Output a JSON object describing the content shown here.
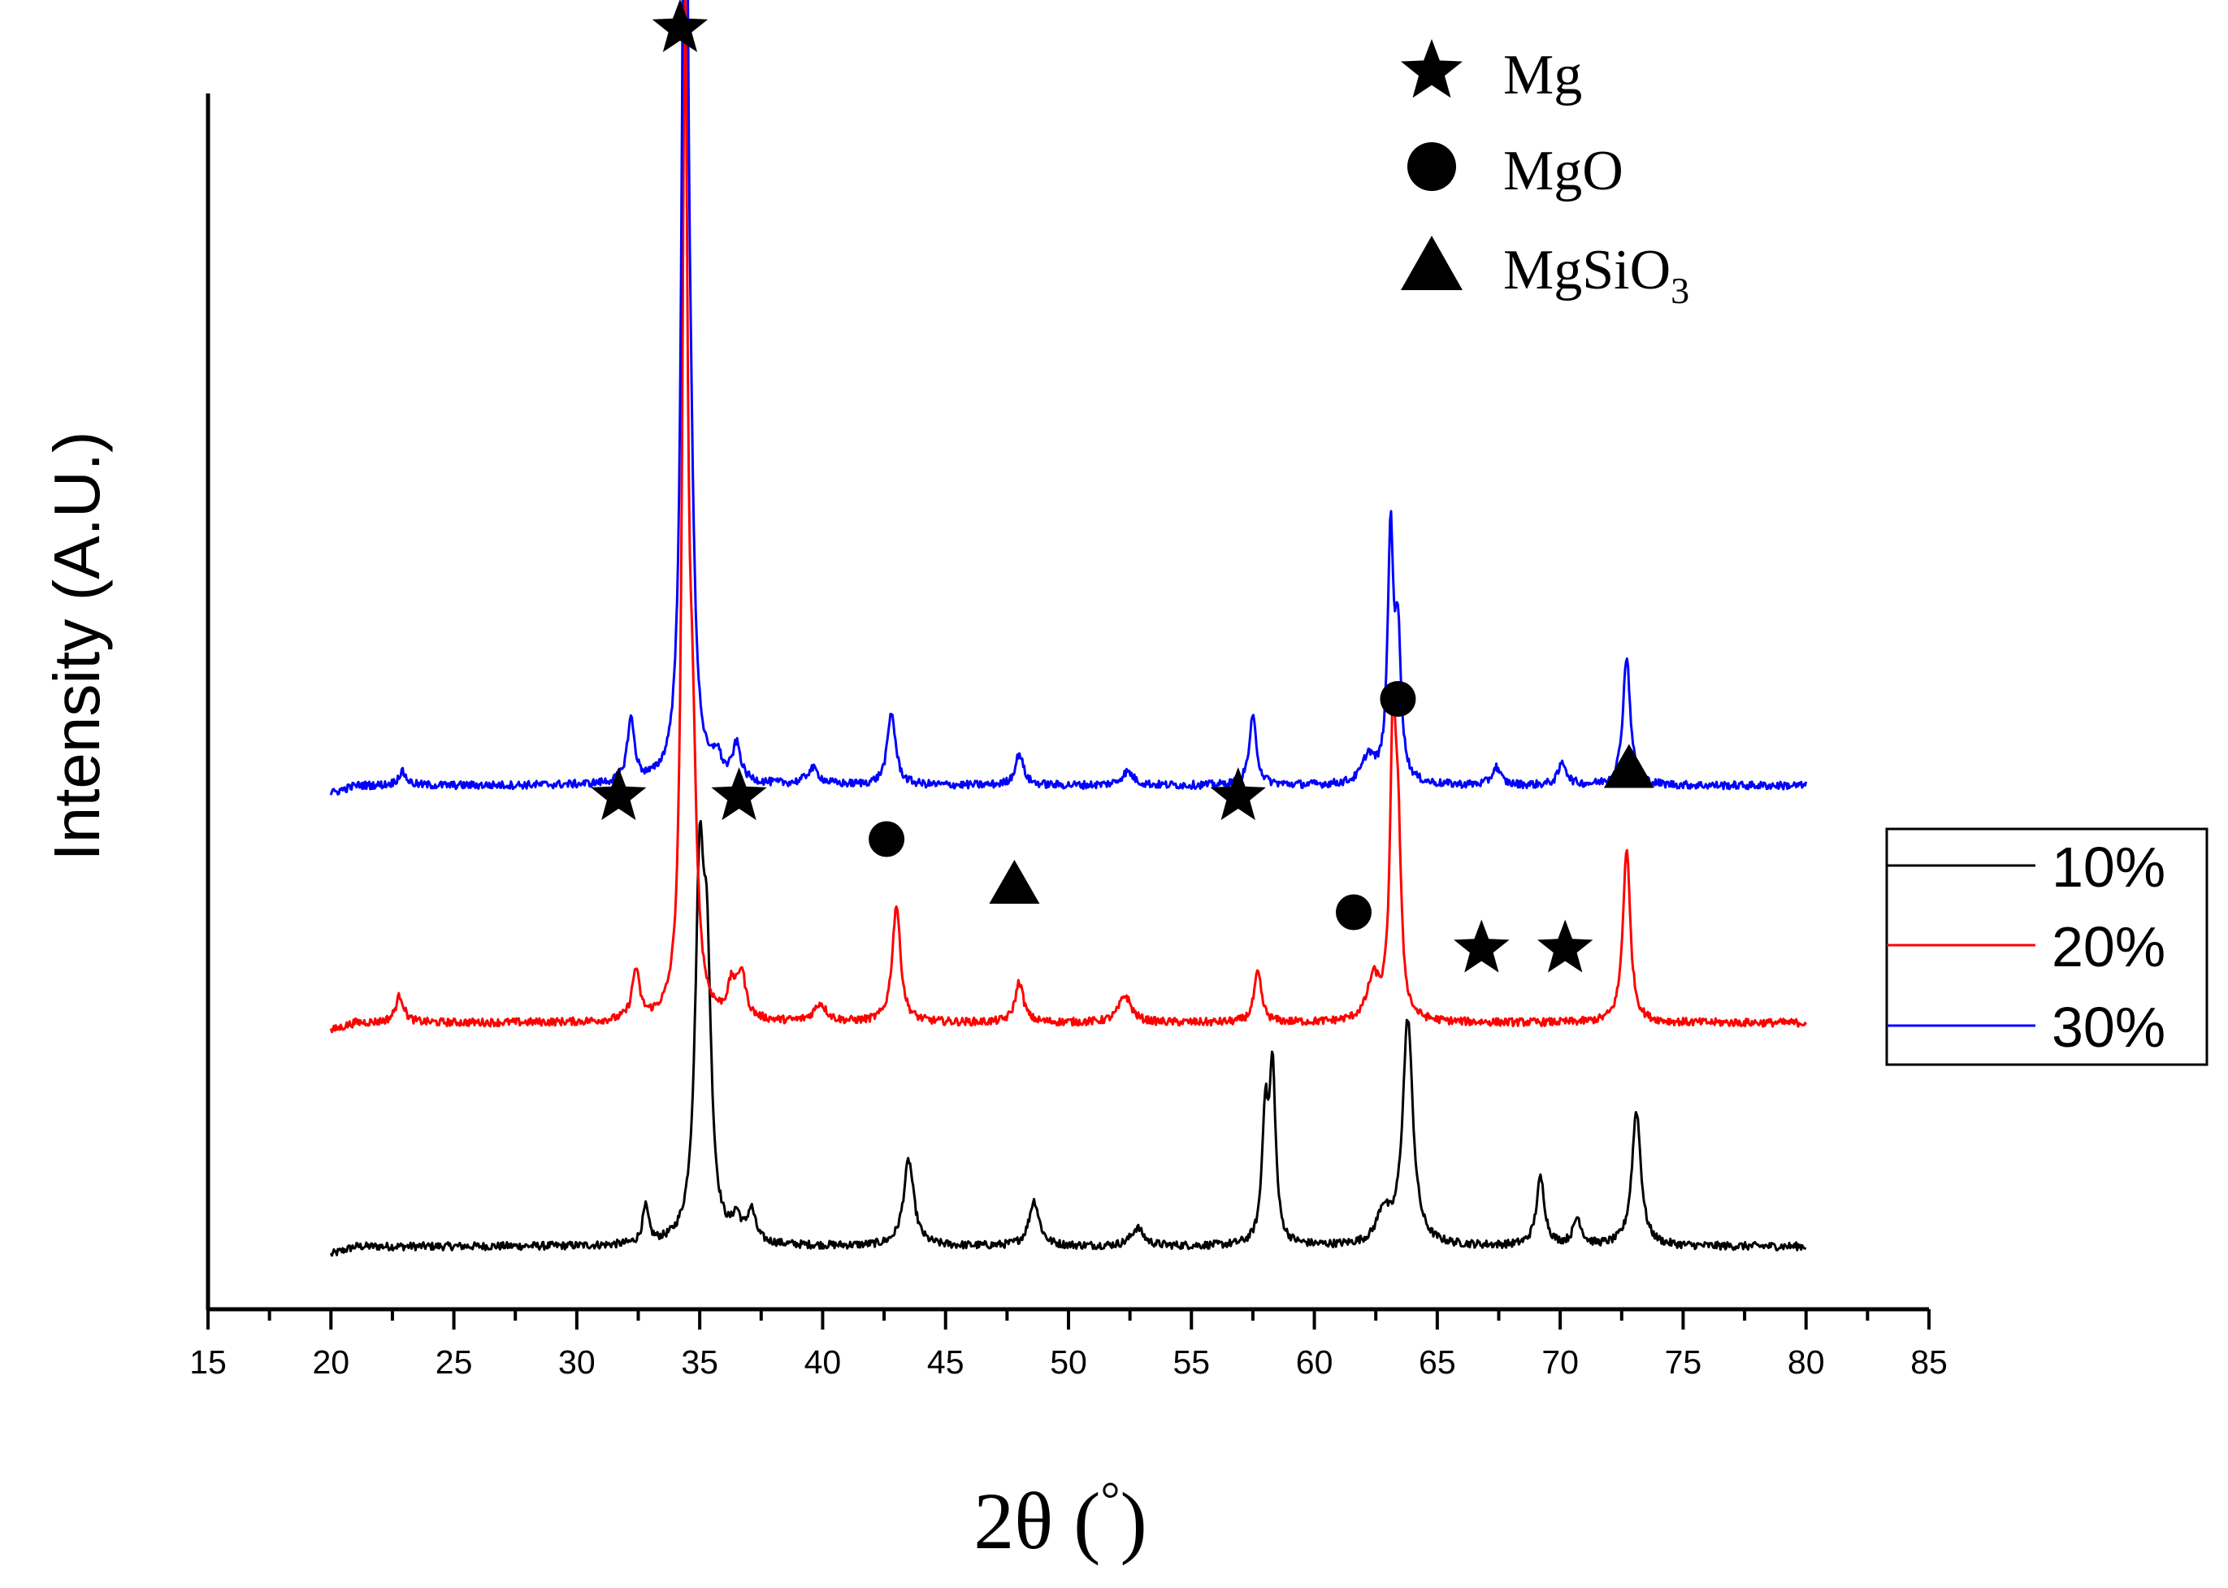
{
  "chart_data": {
    "type": "line",
    "title": "",
    "xlabel": "2θ (°)",
    "xlabel_parts": {
      "main": "2θ (",
      "degree": "°",
      "close": ")"
    },
    "ylabel": "Intensity (A.U.)",
    "xlim": [
      15,
      85
    ],
    "x_ticks": [
      "15",
      "20",
      "25",
      "30",
      "35",
      "40",
      "45",
      "50",
      "55",
      "60",
      "65",
      "70",
      "75",
      "80",
      "85"
    ],
    "y_ticks": [],
    "grid": false,
    "legend_position": "right",
    "series": [
      {
        "name": "10%",
        "color": "#000000",
        "offset": 0,
        "baseline": 4,
        "peaks": [
          [
            32.8,
            16,
            0.15
          ],
          [
            35.0,
            155,
            0.22
          ],
          [
            35.3,
            100,
            0.2
          ],
          [
            36.5,
            10,
            0.2
          ],
          [
            37.1,
            14,
            0.2
          ],
          [
            43.5,
            38,
            0.25
          ],
          [
            48.6,
            20,
            0.25
          ],
          [
            52.8,
            8,
            0.3
          ],
          [
            58.0,
            55,
            0.15
          ],
          [
            58.3,
            75,
            0.15
          ],
          [
            62.8,
            14,
            0.3
          ],
          [
            63.8,
            100,
            0.25
          ],
          [
            69.2,
            30,
            0.2
          ],
          [
            70.7,
            12,
            0.2
          ],
          [
            73.1,
            60,
            0.22
          ]
        ]
      },
      {
        "name": "20%",
        "color": "#ff0000",
        "offset": 100,
        "baseline": 3,
        "peaks": [
          [
            22.8,
            12,
            0.2
          ],
          [
            32.4,
            22,
            0.18
          ],
          [
            34.4,
            430,
            0.13
          ],
          [
            34.7,
            100,
            0.2
          ],
          [
            36.3,
            14,
            0.2
          ],
          [
            36.7,
            20,
            0.2
          ],
          [
            39.9,
            8,
            0.3
          ],
          [
            43.0,
            52,
            0.2
          ],
          [
            48.0,
            18,
            0.2
          ],
          [
            52.3,
            12,
            0.3
          ],
          [
            57.7,
            22,
            0.18
          ],
          [
            62.4,
            18,
            0.3
          ],
          [
            63.2,
            122,
            0.14
          ],
          [
            63.4,
            70,
            0.15
          ],
          [
            72.7,
            77,
            0.18
          ]
        ]
      },
      {
        "name": "30%",
        "color": "#0000ff",
        "offset": 205,
        "baseline": 3,
        "peaks": [
          [
            22.9,
            6,
            0.2
          ],
          [
            32.2,
            28,
            0.18
          ],
          [
            34.4,
            500,
            0.13
          ],
          [
            34.6,
            90,
            0.2
          ],
          [
            35.7,
            10,
            0.2
          ],
          [
            36.5,
            16,
            0.2
          ],
          [
            39.6,
            7,
            0.3
          ],
          [
            42.8,
            32,
            0.2
          ],
          [
            48.0,
            14,
            0.2
          ],
          [
            52.4,
            6,
            0.3
          ],
          [
            57.5,
            30,
            0.18
          ],
          [
            62.2,
            12,
            0.3
          ],
          [
            63.1,
            108,
            0.14
          ],
          [
            63.4,
            60,
            0.15
          ],
          [
            67.4,
            8,
            0.2
          ],
          [
            70.1,
            10,
            0.2
          ],
          [
            72.7,
            57,
            0.18
          ]
        ]
      }
    ],
    "markers": [
      {
        "symbol": "star",
        "x": 34.2,
        "label_level": 1880
      },
      {
        "symbol": "star",
        "x": 31.7,
        "label_level": 1250
      },
      {
        "symbol": "star",
        "x": 36.6,
        "label_level": 1250
      },
      {
        "symbol": "circle",
        "x": 42.6,
        "label_level": 1215
      },
      {
        "symbol": "triangle",
        "x": 47.8,
        "label_level": 1180
      },
      {
        "symbol": "star",
        "x": 56.9,
        "label_level": 1250
      },
      {
        "symbol": "circle",
        "x": 61.6,
        "label_level": 1155
      },
      {
        "symbol": "circle",
        "x": 63.4,
        "label_level": 1330
      },
      {
        "symbol": "star",
        "x": 66.8,
        "label_level": 1125
      },
      {
        "symbol": "star",
        "x": 70.2,
        "label_level": 1125
      },
      {
        "symbol": "triangle",
        "x": 72.8,
        "label_level": 1275
      }
    ],
    "phase_legend": [
      {
        "symbol": "star",
        "label": "Mg",
        "label_main": "Mg",
        "label_sub": ""
      },
      {
        "symbol": "circle",
        "label": "MgO",
        "label_main": "MgO",
        "label_sub": ""
      },
      {
        "symbol": "triangle",
        "label": "MgSiO3",
        "label_main": "MgSiO",
        "label_sub": "3"
      }
    ]
  }
}
